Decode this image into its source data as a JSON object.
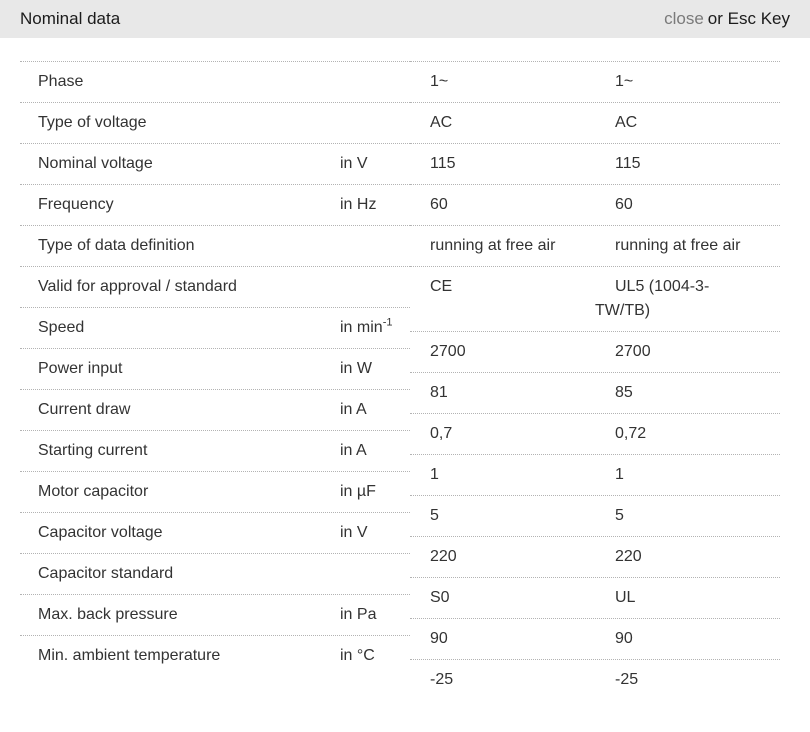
{
  "header": {
    "title": "Nominal data",
    "close_label": "close",
    "esc_hint": "or Esc Key"
  },
  "table": {
    "rows": [
      {
        "label": "Phase",
        "unit": ""
      },
      {
        "label": "Type of voltage",
        "unit": ""
      },
      {
        "label": "Nominal voltage",
        "unit": "in V"
      },
      {
        "label": "Frequency",
        "unit": "in Hz"
      },
      {
        "label": "Type of data definition",
        "unit": ""
      },
      {
        "label": "Valid for approval / standard",
        "unit": ""
      },
      {
        "label": "Speed",
        "unit": "in min",
        "unit_sup": "-1"
      },
      {
        "label": "Power input",
        "unit": "in W"
      },
      {
        "label": "Current draw",
        "unit": "in A"
      },
      {
        "label": "Starting current",
        "unit": "in A"
      },
      {
        "label": "Motor capacitor",
        "unit": "in µF"
      },
      {
        "label": "Capacitor voltage",
        "unit": "in V"
      },
      {
        "label": "Capacitor standard",
        "unit": ""
      },
      {
        "label": "Max. back pressure",
        "unit": "in Pa"
      },
      {
        "label": "Min. ambient temperature",
        "unit": "in °C"
      }
    ],
    "values": [
      [
        "1~",
        "1~"
      ],
      [
        "AC",
        "AC"
      ],
      [
        "115",
        "115"
      ],
      [
        "60",
        "60"
      ],
      [
        "running at free air",
        "running at free air"
      ],
      [
        "CE",
        "UL5 (1004-3-TW/TB)"
      ],
      [
        "2700",
        "2700"
      ],
      [
        "81",
        "85"
      ],
      [
        "0,7",
        "0,72"
      ],
      [
        "1",
        "1"
      ],
      [
        "5",
        "5"
      ],
      [
        "220",
        "220"
      ],
      [
        "S0",
        "UL"
      ],
      [
        "90",
        "90"
      ],
      [
        "-25",
        "-25"
      ]
    ]
  },
  "colors": {
    "header_bg": "#e8e8e8",
    "divider": "#b3b3b3",
    "close_link": "#7a7a7a",
    "text": "#333333"
  }
}
